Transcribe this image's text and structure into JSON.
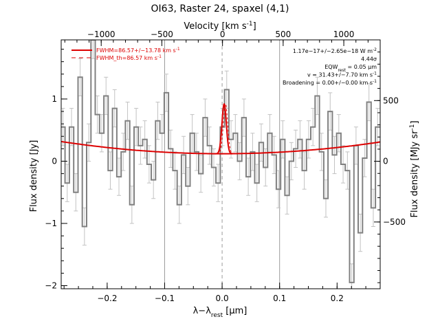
{
  "chart_data": {
    "type": "line",
    "title": "OI63, Raster 24, spaxel (4,1)",
    "top_axis_label": "Velocity [km s",
    "top_axis_label_sup": "-1",
    "top_axis_label_end": "]",
    "xlabel": "λ−λ",
    "xlabel_sub": "rest",
    "xlabel_unit": " [μm]",
    "ylabel": "Flux density [Jy]",
    "y2label": "Flux density [MJy sr",
    "y2label_sup": "-1",
    "y2label_end": "]",
    "xlim": [
      -0.28,
      0.275
    ],
    "ylim": [
      -2.05,
      1.95
    ],
    "vlim": [
      -1330,
      1300
    ],
    "y2lim": [
      -1050,
      1000
    ],
    "x_ticks": [
      -0.2,
      -0.1,
      0.0,
      0.1,
      0.2
    ],
    "x_tick_labels": [
      "−0.2",
      "−0.1",
      "0.0",
      "0.1",
      "0.2"
    ],
    "y_ticks": [
      -2,
      -1,
      0,
      1
    ],
    "y_tick_labels": [
      "−2",
      "−1",
      "0",
      "1"
    ],
    "v_ticks": [
      -1000,
      -500,
      0,
      500,
      1000
    ],
    "v_tick_labels": [
      "−1000",
      "−500",
      "0",
      "500",
      "1000"
    ],
    "y2_ticks": [
      -500,
      0,
      500
    ],
    "y2_tick_labels": [
      "−500",
      "0",
      "500"
    ],
    "vertical_lines": {
      "solid": [
        -0.1,
        0.1
      ],
      "dashed": [
        0.0
      ]
    },
    "legend": [
      {
        "label": "FWHM=86.57+/−13.78 km s",
        "sup": "-1",
        "style": "solid",
        "color": "#dd0000"
      },
      {
        "label": "FWHM_th=86.57 km s",
        "sup": "-1",
        "style": "dashed",
        "color": "#dd0000"
      }
    ],
    "annotations": [
      {
        "text": "1.17e−17+/−2.65e−18 W m",
        "sup": "-2",
        "sub": "",
        "rest": ""
      },
      {
        "text": "4.44σ",
        "sup": "",
        "sub": "",
        "rest": ""
      },
      {
        "text": "EQW",
        "sup": "",
        "sub": "rest",
        "rest": " = 0.05 μm"
      },
      {
        "text": "v = 31.43+/−7.70 km s",
        "sup": "-1",
        "sub": "",
        "rest": ""
      },
      {
        "text": "Broadening = 0.00+/−0.00 km s",
        "sup": "-1",
        "sub": "",
        "rest": ""
      }
    ],
    "series": [
      {
        "name": "FWHM=86.57+/−13.78 km s-1",
        "kind": "spectrum",
        "color": "#808080",
        "step_width": 0.0075,
        "x": [
          -0.277,
          -0.2695,
          -0.262,
          -0.2545,
          -0.247,
          -0.2395,
          -0.232,
          -0.2245,
          -0.217,
          -0.2095,
          -0.202,
          -0.1945,
          -0.187,
          -0.1795,
          -0.172,
          -0.1645,
          -0.157,
          -0.1495,
          -0.142,
          -0.1345,
          -0.127,
          -0.1195,
          -0.112,
          -0.1045,
          -0.097,
          -0.0895,
          -0.082,
          -0.0745,
          -0.067,
          -0.0595,
          -0.052,
          -0.0445,
          -0.037,
          -0.0295,
          -0.022,
          -0.0145,
          -0.007,
          0.0005,
          0.008,
          0.0155,
          0.023,
          0.0305,
          0.038,
          0.0455,
          0.053,
          0.0605,
          0.068,
          0.0755,
          0.083,
          0.0905,
          0.098,
          0.1055,
          0.113,
          0.1205,
          0.128,
          0.1355,
          0.143,
          0.1505,
          0.158,
          0.1655,
          0.173,
          0.1805,
          0.188,
          0.1955,
          0.203,
          0.2105,
          0.218,
          0.2255,
          0.233,
          0.2405,
          0.248,
          0.2555,
          0.263,
          0.2705
        ],
        "y": [
          0.55,
          -0.35,
          0.55,
          -0.5,
          1.35,
          -1.05,
          0.3,
          1.95,
          0.75,
          0.45,
          1.05,
          -0.15,
          0.85,
          -0.25,
          0.15,
          0.65,
          -0.7,
          0.55,
          0.25,
          0.35,
          -0.05,
          -0.3,
          0.65,
          0.45,
          1.1,
          0.2,
          -0.15,
          -0.7,
          0.1,
          -0.4,
          0.45,
          0.15,
          -0.2,
          0.7,
          0.25,
          -0.1,
          -0.35,
          0.55,
          1.15,
          0.35,
          0.45,
          0.0,
          0.7,
          -0.25,
          0.15,
          -0.35,
          0.3,
          -0.1,
          0.45,
          0.1,
          -0.45,
          0.35,
          -0.55,
          0.0,
          0.2,
          0.35,
          -0.15,
          0.35,
          0.55,
          1.05,
          0.15,
          -0.6,
          0.8,
          0.1,
          0.45,
          -0.05,
          -0.15,
          -1.95,
          0.25,
          -1.15,
          0.05,
          0.95,
          -0.75,
          0.55
        ],
        "err": [
          0.3,
          0.3,
          0.3,
          0.3,
          0.3,
          0.3,
          0.3,
          0.3,
          0.3,
          0.3,
          0.3,
          0.3,
          0.3,
          0.3,
          0.3,
          0.3,
          0.3,
          0.3,
          0.3,
          0.3,
          0.3,
          0.3,
          0.3,
          0.3,
          0.3,
          0.3,
          0.3,
          0.3,
          0.3,
          0.3,
          0.3,
          0.3,
          0.3,
          0.3,
          0.3,
          0.3,
          0.3,
          0.3,
          0.3,
          0.3,
          0.3,
          0.3,
          0.3,
          0.3,
          0.3,
          0.3,
          0.3,
          0.3,
          0.3,
          0.3,
          0.3,
          0.3,
          0.3,
          0.3,
          0.3,
          0.3,
          0.3,
          0.3,
          0.3,
          0.3,
          0.3,
          0.3,
          0.3,
          0.3,
          0.3,
          0.3,
          0.3,
          0.3,
          0.3,
          0.3,
          0.3,
          0.3,
          0.3,
          0.3
        ]
      },
      {
        "name": "continuum",
        "kind": "polynomial",
        "color": "#dd0000",
        "coeffs": [
          0.12,
          0.0,
          2.5
        ]
      },
      {
        "name": "FWHM_th=86.57 km s-1",
        "kind": "gaussian",
        "color": "#dd0000",
        "center": 0.0035,
        "amplitude": 0.8,
        "sigma": 0.0038,
        "range": [
          -0.012,
          0.021
        ]
      }
    ]
  }
}
